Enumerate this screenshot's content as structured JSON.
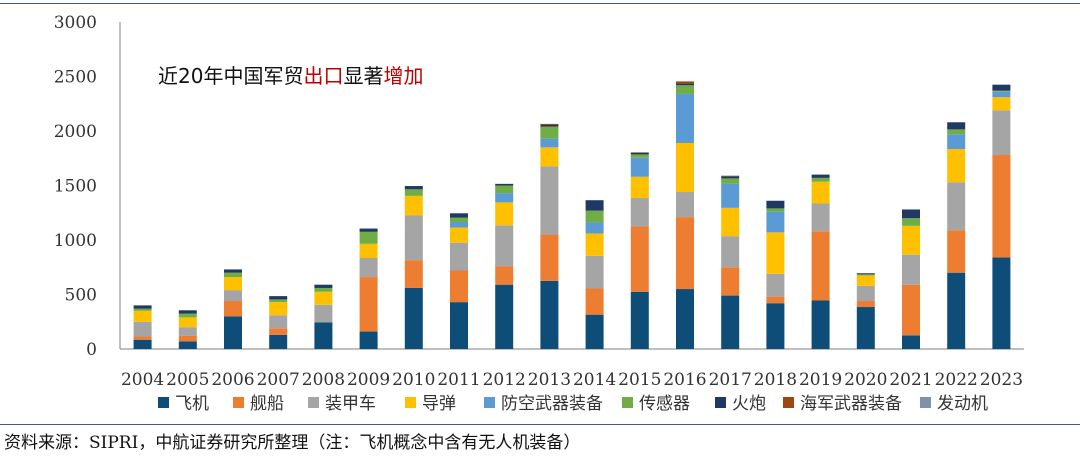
{
  "source_note": "资料来源：SIPRI，中航证券研究所整理（注：飞机概念中含有无人机装备）",
  "chart_data": {
    "type": "bar",
    "stacked": true,
    "title_parts": [
      "近20年中国军贸",
      "出口",
      "显著",
      "增加"
    ],
    "title_highlight_color": "#c00000",
    "ylim": [
      0,
      3000
    ],
    "yticks": [
      "0",
      "500",
      "1000",
      "1500",
      "2000",
      "2500",
      "3000"
    ],
    "categories": [
      "2004",
      "2005",
      "2006",
      "2007",
      "2008",
      "2009",
      "2010",
      "2011",
      "2012",
      "2013",
      "2014",
      "2015",
      "2016",
      "2017",
      "2018",
      "2019",
      "2020",
      "2021",
      "2022",
      "2023"
    ],
    "series": [
      {
        "name": "飞机",
        "color": "#0e4d78",
        "values": [
          85,
          70,
          300,
          130,
          245,
          160,
          560,
          430,
          590,
          625,
          315,
          525,
          550,
          490,
          420,
          445,
          385,
          125,
          700,
          840
        ]
      },
      {
        "name": "舰船",
        "color": "#ed7d31",
        "values": [
          30,
          50,
          140,
          60,
          0,
          500,
          255,
          290,
          170,
          425,
          240,
          600,
          660,
          260,
          60,
          635,
          55,
          465,
          390,
          940
        ]
      },
      {
        "name": "装甲车",
        "color": "#a5a5a5",
        "values": [
          135,
          80,
          100,
          120,
          160,
          175,
          410,
          255,
          375,
          625,
          300,
          260,
          230,
          285,
          210,
          255,
          140,
          275,
          440,
          410
        ]
      },
      {
        "name": "导弹",
        "color": "#ffc000",
        "values": [
          100,
          90,
          120,
          120,
          120,
          130,
          180,
          140,
          210,
          175,
          205,
          195,
          450,
          260,
          380,
          200,
          95,
          265,
          305,
          120
        ]
      },
      {
        "name": "防空武器装备",
        "color": "#5b9bd5",
        "values": [
          0,
          0,
          0,
          0,
          0,
          0,
          0,
          50,
          85,
          80,
          100,
          175,
          450,
          220,
          190,
          0,
          0,
          0,
          135,
          50
        ]
      },
      {
        "name": "传感器",
        "color": "#70ad47",
        "values": [
          20,
          35,
          40,
          25,
          35,
          110,
          60,
          40,
          70,
          110,
          110,
          30,
          80,
          50,
          30,
          35,
          10,
          70,
          45,
          10
        ]
      },
      {
        "name": "火炮",
        "color": "#1f3864",
        "values": [
          30,
          30,
          30,
          30,
          30,
          30,
          30,
          40,
          15,
          15,
          95,
          15,
          15,
          20,
          70,
          30,
          10,
          80,
          65,
          55
        ]
      },
      {
        "name": "海军武器装备",
        "color": "#9e480e",
        "values": [
          0,
          0,
          0,
          0,
          0,
          0,
          0,
          0,
          0,
          10,
          0,
          5,
          20,
          5,
          0,
          0,
          0,
          0,
          0,
          0
        ]
      },
      {
        "name": "发动机",
        "color": "#7f93a8",
        "values": [
          0,
          0,
          0,
          0,
          0,
          0,
          0,
          0,
          0,
          0,
          0,
          0,
          0,
          0,
          0,
          0,
          0,
          0,
          0,
          0
        ]
      }
    ],
    "legend_position": "bottom"
  }
}
